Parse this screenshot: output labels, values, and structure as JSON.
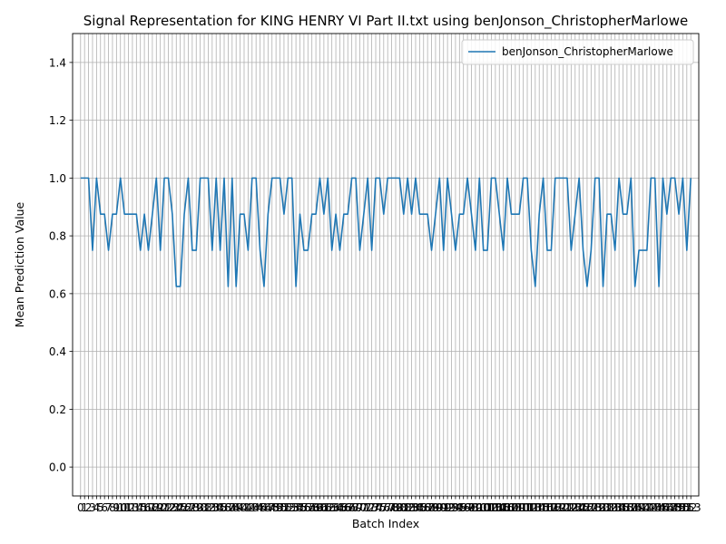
{
  "chart_data": {
    "type": "line",
    "title": "Signal Representation for KING HENRY VI Part II.txt using benJonson_ChristopherMarlowe",
    "xlabel": "Batch Index",
    "ylabel": "Mean Prediction Value",
    "ylim": [
      -0.1,
      1.5
    ],
    "xlim": [
      -2,
      155
    ],
    "y_ticks": [
      "0.0",
      "0.2",
      "0.4",
      "0.6",
      "0.8",
      "1.0",
      "1.2",
      "1.4"
    ],
    "x_ticks": [
      "0",
      "1",
      "2",
      "3",
      "4",
      "5",
      "6",
      "7",
      "8",
      "9",
      "10",
      "11",
      "12",
      "13",
      "14",
      "15",
      "16",
      "17",
      "18",
      "19",
      "20",
      "21",
      "22",
      "23",
      "24",
      "25",
      "26",
      "27",
      "28",
      "29",
      "30",
      "31",
      "32",
      "33",
      "34",
      "35",
      "36",
      "37",
      "38",
      "39",
      "40",
      "41",
      "42",
      "43",
      "44",
      "45",
      "46",
      "47",
      "48",
      "49",
      "50",
      "51",
      "52",
      "53",
      "54",
      "55",
      "56",
      "57",
      "58",
      "59",
      "60",
      "61",
      "62",
      "63",
      "64",
      "65",
      "66",
      "67",
      "68",
      "69",
      "70",
      "71",
      "72",
      "73",
      "74",
      "75",
      "76",
      "77",
      "78",
      "79",
      "80",
      "81",
      "82",
      "83",
      "84",
      "85",
      "86",
      "87",
      "88",
      "89",
      "90",
      "91",
      "92",
      "93",
      "94",
      "95",
      "96",
      "97",
      "98",
      "99",
      "100",
      "101",
      "102",
      "103",
      "104",
      "105",
      "106",
      "107",
      "108",
      "109",
      "110",
      "111",
      "112",
      "113",
      "114",
      "115",
      "116",
      "117",
      "118",
      "119",
      "120",
      "121",
      "122",
      "123",
      "124",
      "125",
      "126",
      "127",
      "128",
      "129",
      "130",
      "131",
      "132",
      "133",
      "134",
      "135",
      "136",
      "137",
      "138",
      "139",
      "140",
      "141",
      "142",
      "143",
      "144",
      "145",
      "146",
      "147",
      "148",
      "149",
      "150",
      "151",
      "152",
      "153"
    ],
    "grid": true,
    "legend_position": "top-right",
    "series": [
      {
        "name": "benJonson_ChristopherMarlowe",
        "color": "#1f77b4",
        "x": [
          0,
          1,
          2,
          3,
          4,
          5,
          6,
          7,
          8,
          9,
          10,
          11,
          12,
          13,
          14,
          15,
          16,
          17,
          18,
          19,
          20,
          21,
          22,
          23,
          24,
          25,
          26,
          27,
          28,
          29,
          30,
          31,
          32,
          33,
          34,
          35,
          36,
          37,
          38,
          39,
          40,
          41,
          42,
          43,
          44,
          45,
          46,
          47,
          48,
          49,
          50,
          51,
          52,
          53,
          54,
          55,
          56,
          57,
          58,
          59,
          60,
          61,
          62,
          63,
          64,
          65,
          66,
          67,
          68,
          69,
          70,
          71,
          72,
          73,
          74,
          75,
          76,
          77,
          78,
          79,
          80,
          81,
          82,
          83,
          84,
          85,
          86,
          87,
          88,
          89,
          90,
          91,
          92,
          93,
          94,
          95,
          96,
          97,
          98,
          99,
          100,
          101,
          102,
          103,
          104,
          105,
          106,
          107,
          108,
          109,
          110,
          111,
          112,
          113,
          114,
          115,
          116,
          117,
          118,
          119,
          120,
          121,
          122,
          123,
          124,
          125,
          126,
          127,
          128,
          129,
          130,
          131,
          132,
          133,
          134,
          135,
          136,
          137,
          138,
          139,
          140,
          141,
          142,
          143,
          144,
          145,
          146,
          147,
          148,
          149,
          150,
          151,
          152,
          153
        ],
        "values": [
          1.0,
          1.0,
          1.0,
          0.75,
          1.0,
          0.875,
          0.875,
          0.75,
          0.875,
          0.875,
          1.0,
          0.875,
          0.875,
          0.875,
          0.875,
          0.75,
          0.875,
          0.75,
          0.875,
          1.0,
          0.75,
          1.0,
          1.0,
          0.875,
          0.625,
          0.625,
          0.875,
          1.0,
          0.75,
          0.75,
          1.0,
          1.0,
          1.0,
          0.75,
          1.0,
          0.75,
          1.0,
          0.625,
          1.0,
          0.625,
          0.875,
          0.875,
          0.75,
          1.0,
          1.0,
          0.75,
          0.625,
          0.875,
          1.0,
          1.0,
          1.0,
          0.875,
          1.0,
          1.0,
          0.625,
          0.875,
          0.75,
          0.75,
          0.875,
          0.875,
          1.0,
          0.875,
          1.0,
          0.75,
          0.875,
          0.75,
          0.875,
          0.875,
          1.0,
          1.0,
          0.75,
          0.875,
          1.0,
          0.75,
          1.0,
          1.0,
          0.875,
          1.0,
          1.0,
          1.0,
          1.0,
          0.875,
          1.0,
          0.875,
          1.0,
          0.875,
          0.875,
          0.875,
          0.75,
          0.875,
          1.0,
          0.75,
          1.0,
          0.875,
          0.75,
          0.875,
          0.875,
          1.0,
          0.875,
          0.75,
          1.0,
          0.75,
          0.75,
          1.0,
          1.0,
          0.875,
          0.75,
          1.0,
          0.875,
          0.875,
          0.875,
          1.0,
          1.0,
          0.75,
          0.625,
          0.875,
          1.0,
          0.75,
          0.75,
          1.0,
          1.0,
          1.0,
          1.0,
          0.75,
          0.875,
          1.0,
          0.75,
          0.625,
          0.75,
          1.0,
          1.0,
          0.625,
          0.875,
          0.875,
          0.75,
          1.0,
          0.875,
          0.875,
          1.0,
          0.625,
          0.75,
          0.75,
          0.75,
          1.0,
          1.0,
          0.625,
          1.0,
          0.875,
          1.0,
          1.0,
          0.875,
          1.0,
          0.75,
          1.0
        ]
      }
    ]
  }
}
